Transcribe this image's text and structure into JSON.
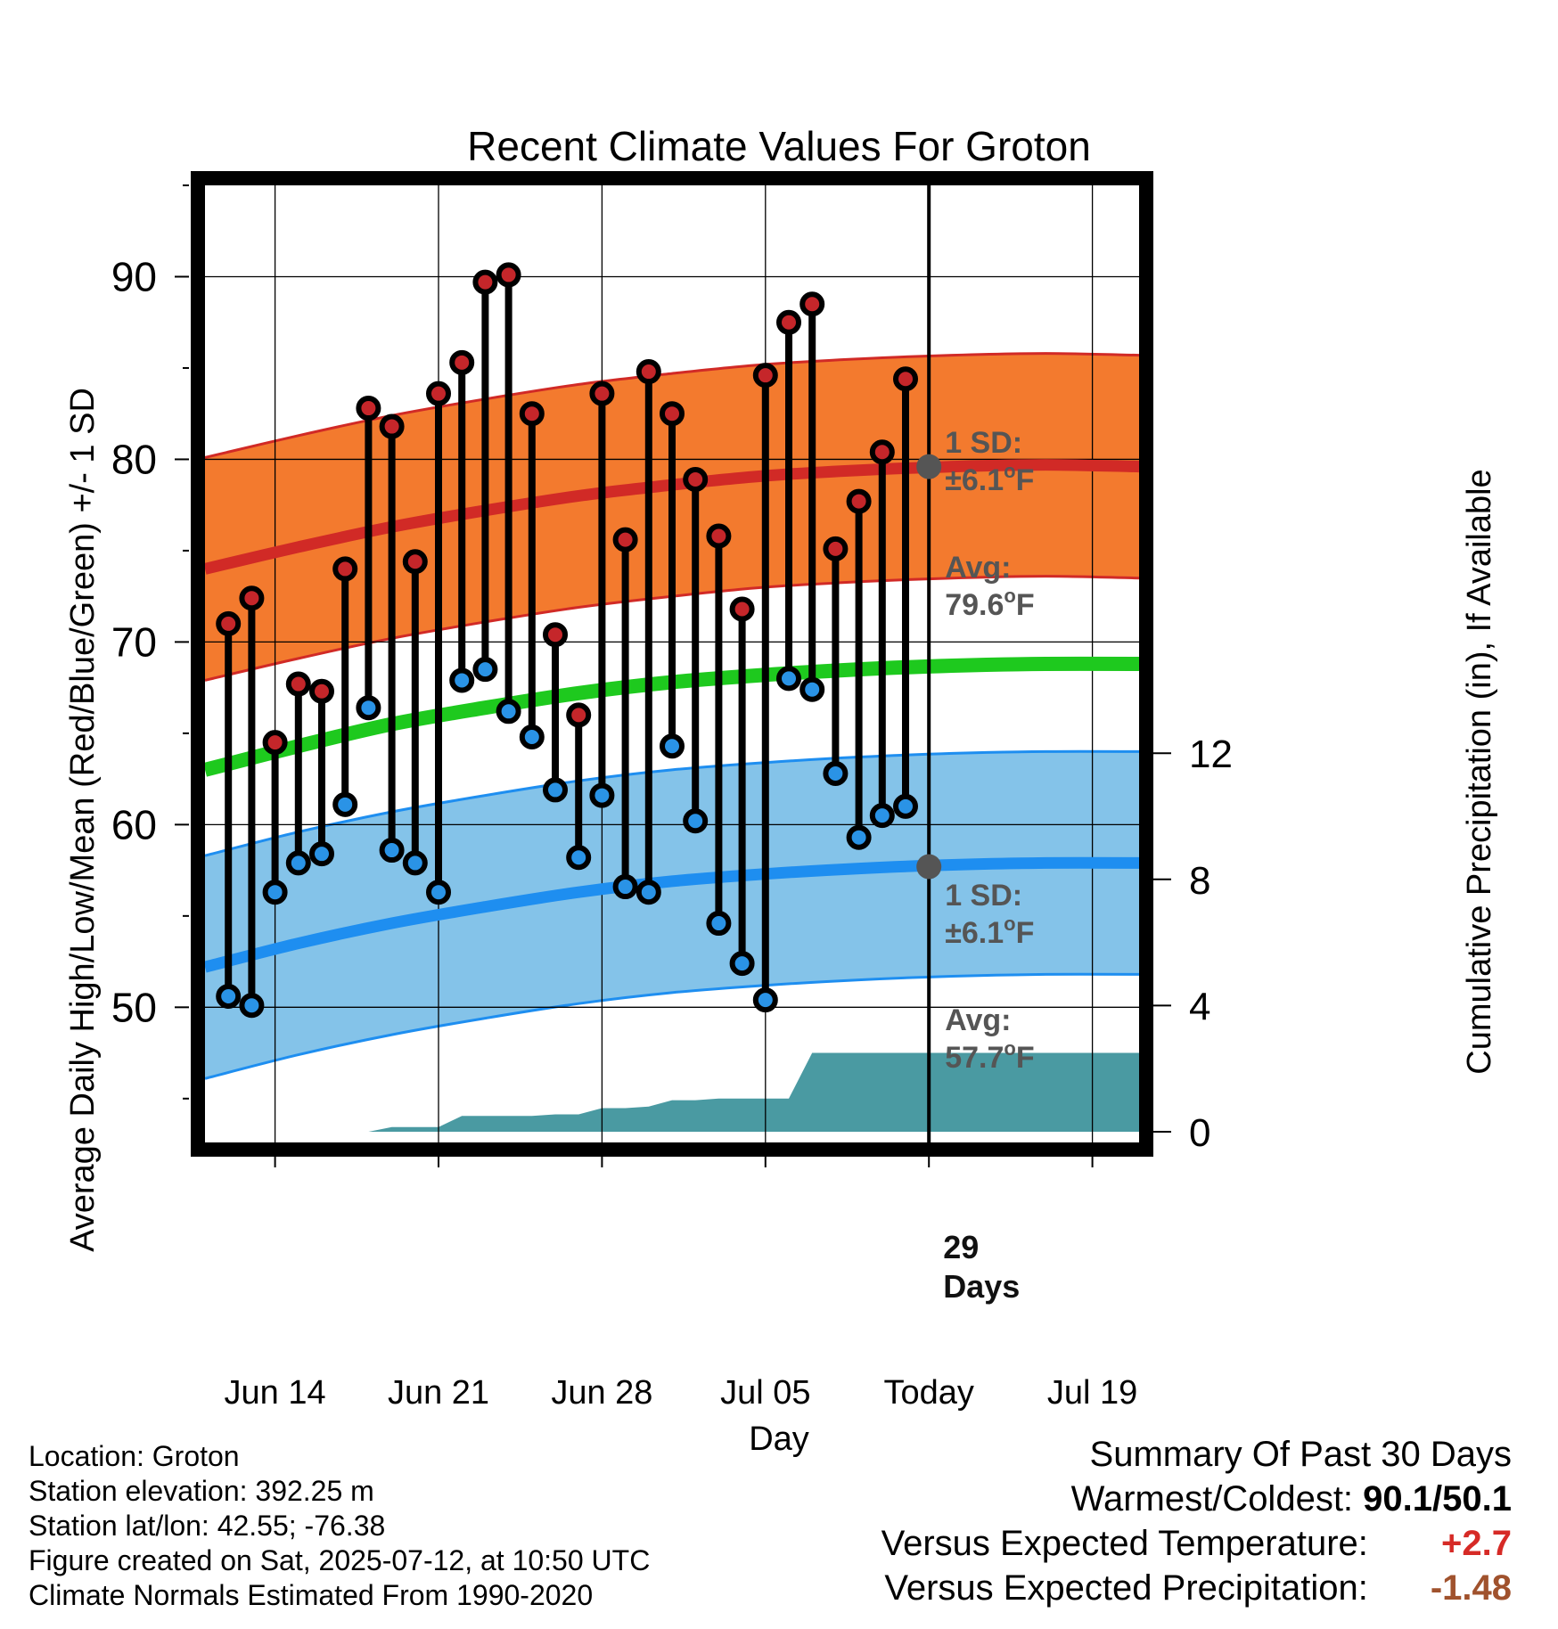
{
  "chart_data": {
    "type": "line",
    "title": "Recent Climate Values For Groton",
    "xlabel": "Day",
    "ylabel": "Average Daily High/Low/Mean (Red/Blue/Green) +/- 1 SD",
    "y2label": "Cumulative Precipitation (in), If Available",
    "x_start": "2025-06-11",
    "x_ticks": [
      {
        "date": "2025-06-14",
        "label": "Jun 14"
      },
      {
        "date": "2025-06-21",
        "label": "Jun 21"
      },
      {
        "date": "2025-06-28",
        "label": "Jun 28"
      },
      {
        "date": "2025-07-05",
        "label": "Jul 05"
      },
      {
        "date": "2025-07-12",
        "label": "Today"
      },
      {
        "date": "2025-07-19",
        "label": "Jul 19"
      }
    ],
    "xlim": [
      "2025-06-11",
      "2025-07-21"
    ],
    "ylim": [
      42.6,
      95
    ],
    "y_ticks": [
      50,
      60,
      70,
      80,
      90
    ],
    "y2lim": [
      0,
      30
    ],
    "y2_ticks": [
      0,
      4,
      8,
      12
    ],
    "grid": true,
    "today": "2025-07-12",
    "normals": {
      "dates": [
        "2025-06-11",
        "2025-06-15",
        "2025-06-19",
        "2025-06-23",
        "2025-06-27",
        "2025-07-01",
        "2025-07-05",
        "2025-07-09",
        "2025-07-13",
        "2025-07-17",
        "2025-07-21"
      ],
      "high_mean": [
        74.0,
        75.2,
        76.3,
        77.2,
        78.0,
        78.6,
        79.1,
        79.4,
        79.6,
        79.7,
        79.6
      ],
      "low_mean": [
        52.2,
        53.5,
        54.6,
        55.5,
        56.3,
        56.9,
        57.3,
        57.6,
        57.8,
        57.9,
        57.9
      ],
      "mean": [
        63.0,
        64.3,
        65.5,
        66.4,
        67.2,
        67.8,
        68.2,
        68.5,
        68.7,
        68.8,
        68.8
      ],
      "high_sd": 6.1,
      "low_sd": 6.1
    },
    "series": [
      {
        "name": "High",
        "dates": [
          "2025-06-12",
          "2025-06-13",
          "2025-06-14",
          "2025-06-15",
          "2025-06-16",
          "2025-06-17",
          "2025-06-18",
          "2025-06-19",
          "2025-06-20",
          "2025-06-21",
          "2025-06-22",
          "2025-06-23",
          "2025-06-24",
          "2025-06-25",
          "2025-06-26",
          "2025-06-27",
          "2025-06-28",
          "2025-06-29",
          "2025-06-30",
          "2025-07-01",
          "2025-07-02",
          "2025-07-03",
          "2025-07-04",
          "2025-07-05",
          "2025-07-06",
          "2025-07-07",
          "2025-07-08",
          "2025-07-09",
          "2025-07-10",
          "2025-07-11"
        ],
        "values": [
          71.0,
          72.4,
          64.5,
          67.7,
          67.3,
          74.0,
          82.8,
          81.8,
          74.4,
          83.6,
          85.3,
          89.7,
          90.1,
          82.5,
          70.4,
          66.0,
          83.6,
          75.6,
          84.8,
          82.5,
          78.9,
          75.8,
          71.8,
          84.6,
          87.5,
          88.5,
          75.1,
          77.7,
          80.4,
          84.4
        ]
      },
      {
        "name": "Low",
        "dates": [
          "2025-06-12",
          "2025-06-13",
          "2025-06-14",
          "2025-06-15",
          "2025-06-16",
          "2025-06-17",
          "2025-06-18",
          "2025-06-19",
          "2025-06-20",
          "2025-06-21",
          "2025-06-22",
          "2025-06-23",
          "2025-06-24",
          "2025-06-25",
          "2025-06-26",
          "2025-06-27",
          "2025-06-28",
          "2025-06-29",
          "2025-06-30",
          "2025-07-01",
          "2025-07-02",
          "2025-07-03",
          "2025-07-04",
          "2025-07-05",
          "2025-07-06",
          "2025-07-07",
          "2025-07-08",
          "2025-07-09",
          "2025-07-10",
          "2025-07-11"
        ],
        "values": [
          50.6,
          50.1,
          56.3,
          57.9,
          58.4,
          61.1,
          66.4,
          58.6,
          57.9,
          56.3,
          67.9,
          68.5,
          66.2,
          64.8,
          61.9,
          58.2,
          61.6,
          56.6,
          56.3,
          64.3,
          60.2,
          54.6,
          52.4,
          50.4,
          68.0,
          67.4,
          62.8,
          59.3,
          60.5,
          61.0
        ]
      },
      {
        "name": "Cumulative Precipitation",
        "dates": [
          "2025-06-11",
          "2025-06-12",
          "2025-06-13",
          "2025-06-14",
          "2025-06-15",
          "2025-06-16",
          "2025-06-17",
          "2025-06-18",
          "2025-06-19",
          "2025-06-20",
          "2025-06-21",
          "2025-06-22",
          "2025-06-23",
          "2025-06-24",
          "2025-06-25",
          "2025-06-26",
          "2025-06-27",
          "2025-06-28",
          "2025-06-29",
          "2025-06-30",
          "2025-07-01",
          "2025-07-02",
          "2025-07-03",
          "2025-07-04",
          "2025-07-05",
          "2025-07-06",
          "2025-07-07",
          "2025-07-08",
          "2025-07-09",
          "2025-07-10",
          "2025-07-11",
          "2025-07-12",
          "2025-07-21"
        ],
        "values": [
          0,
          0,
          0,
          0,
          0,
          0,
          0,
          0,
          0.15,
          0.15,
          0.15,
          0.5,
          0.5,
          0.5,
          0.5,
          0.55,
          0.55,
          0.75,
          0.75,
          0.8,
          1.0,
          1.0,
          1.05,
          1.05,
          1.05,
          1.05,
          2.5,
          2.5,
          2.5,
          2.5,
          2.5,
          2.5,
          2.5
        ]
      }
    ],
    "labels": {
      "high_sd": {
        "line1": "1 SD:",
        "line2": "±6.1",
        "unit": "F"
      },
      "high_avg": {
        "line1": "Avg:",
        "line2": "79.6",
        "unit": "F"
      },
      "low_sd": {
        "line1": "1 SD:",
        "line2": "±6.1",
        "unit": "F"
      },
      "low_avg": {
        "line1": "Avg:",
        "line2": "57.7",
        "unit": "F"
      },
      "days": {
        "line1": "29",
        "line2": "Days"
      }
    },
    "colors": {
      "high_band": "#f37a2e",
      "high_line": "#d12a26",
      "low_band": "#84c3e9",
      "low_line": "#1e8ef0",
      "mean_line": "#1ec91e",
      "precip": "#4a9aa2",
      "high_dot": "#c5262a",
      "low_dot": "#2a93e6",
      "annotation": "#555555"
    }
  },
  "meta": {
    "location": "Location: Groton",
    "elevation": "Station elevation: 392.25 m",
    "latlon": "Station lat/lon: 42.55; -76.38",
    "created": "Figure created on Sat, 2025-07-12, at 10:50 UTC",
    "normals": "Climate Normals Estimated From 1990-2020"
  },
  "summary": {
    "heading": "Summary Of Past 30 Days",
    "warm_cold_label": "Warmest/Coldest:",
    "warm_cold_value": "90.1/50.1",
    "temp_label": "Versus Expected Temperature:",
    "temp_value": "+2.7",
    "temp_color": "#d62a26",
    "precip_label": "Versus Expected Precipitation:",
    "precip_value": "-1.48",
    "precip_color": "#a0522d"
  }
}
